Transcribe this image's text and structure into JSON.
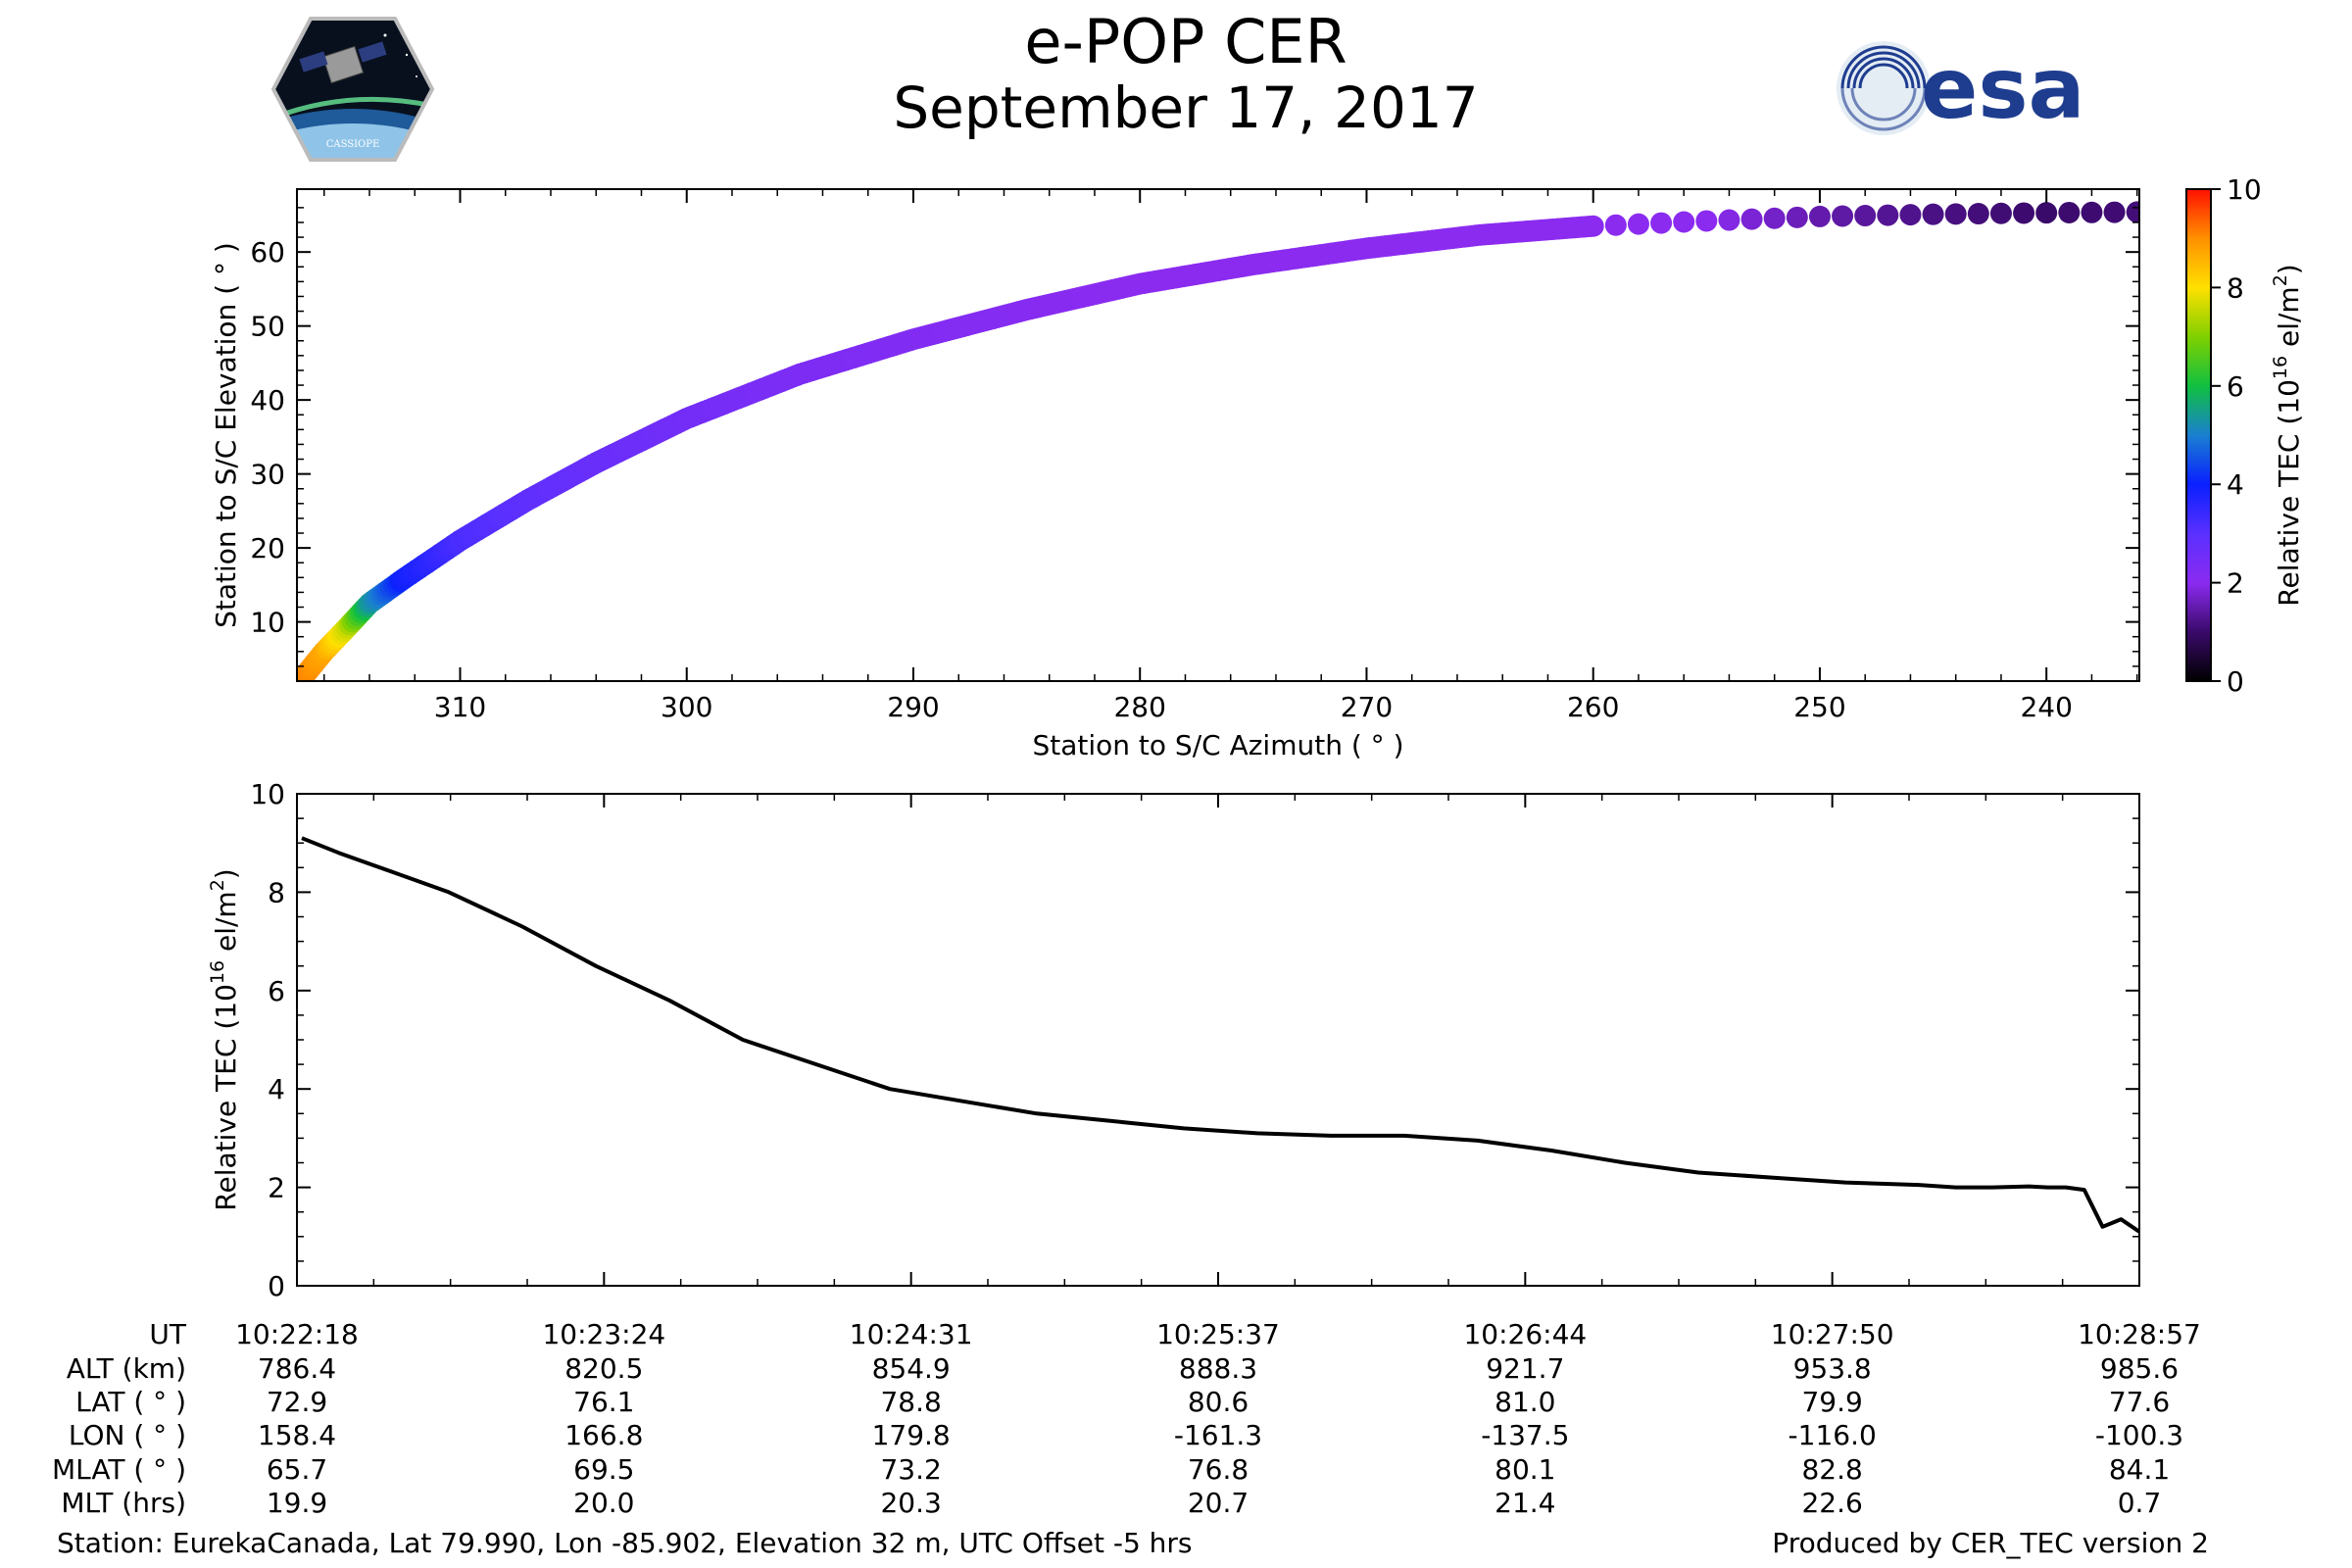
{
  "title": "e-POP CER",
  "subtitle": "September 17, 2017",
  "logos": {
    "left_text": "CASSIOPE",
    "right_text": "esa"
  },
  "chart_data": [
    {
      "type": "scatter",
      "name": "elevation-vs-azimuth",
      "xlabel": "Station to S/C Azimuth ( ° )",
      "ylabel": "Station to S/C Elevation ( ° )",
      "xlim": [
        317.2,
        235.9
      ],
      "ylim": [
        2.0,
        68.5
      ],
      "xticks": [
        310,
        300,
        290,
        280,
        270,
        260,
        250,
        240
      ],
      "yticks": [
        10,
        20,
        30,
        40,
        50,
        60
      ],
      "colorbar": {
        "label": "Relative TEC",
        "unit": "10^16 el/m^2",
        "min": 0,
        "max": 10,
        "ticks": [
          0,
          2,
          4,
          6,
          8,
          10
        ],
        "colormap": "gnuplot2-like"
      },
      "points": [
        {
          "az": 316.8,
          "el": 3.0,
          "tec": 9.1
        },
        {
          "az": 316.0,
          "el": 6.0,
          "tec": 8.7
        },
        {
          "az": 315.0,
          "el": 9.2,
          "tec": 7.6
        },
        {
          "az": 314.0,
          "el": 12.5,
          "tec": 5.4
        },
        {
          "az": 312.5,
          "el": 15.8,
          "tec": 3.9
        },
        {
          "az": 310.0,
          "el": 21.0,
          "tec": 3.2
        },
        {
          "az": 307.0,
          "el": 26.5,
          "tec": 2.9
        },
        {
          "az": 304.0,
          "el": 31.5,
          "tec": 2.7
        },
        {
          "az": 300.0,
          "el": 37.5,
          "tec": 2.5
        },
        {
          "az": 295.0,
          "el": 43.5,
          "tec": 2.3
        },
        {
          "az": 290.0,
          "el": 48.2,
          "tec": 2.2
        },
        {
          "az": 285.0,
          "el": 52.2,
          "tec": 2.1
        },
        {
          "az": 280.0,
          "el": 55.7,
          "tec": 2.0
        },
        {
          "az": 275.0,
          "el": 58.3,
          "tec": 2.0
        },
        {
          "az": 270.0,
          "el": 60.5,
          "tec": 2.0
        },
        {
          "az": 265.0,
          "el": 62.3,
          "tec": 2.0
        },
        {
          "az": 260.0,
          "el": 63.5,
          "tec": 2.0
        },
        {
          "az": 255.0,
          "el": 64.2,
          "tec": 2.0
        },
        {
          "az": 250.0,
          "el": 64.8,
          "tec": 1.5
        },
        {
          "az": 245.0,
          "el": 65.1,
          "tec": 1.2
        },
        {
          "az": 240.0,
          "el": 65.3,
          "tec": 1.0
        },
        {
          "az": 236.0,
          "el": 65.4,
          "tec": 1.1
        }
      ]
    },
    {
      "type": "line",
      "name": "relative-tec-vs-time",
      "ylabel": "Relative TEC (10^16 el/m^2)",
      "xlim": [
        0,
        1
      ],
      "ylim": [
        0,
        10
      ],
      "yticks": [
        0,
        2,
        4,
        6,
        8,
        10
      ],
      "series": [
        {
          "name": "Relative TEC",
          "x": [
            0.0,
            0.02,
            0.05,
            0.08,
            0.12,
            0.16,
            0.2,
            0.24,
            0.28,
            0.32,
            0.36,
            0.4,
            0.44,
            0.48,
            0.52,
            0.56,
            0.6,
            0.64,
            0.68,
            0.72,
            0.76,
            0.8,
            0.84,
            0.88,
            0.9,
            0.92,
            0.94,
            0.95,
            0.96,
            0.97,
            0.98,
            0.99,
            1.0
          ],
          "values": [
            9.1,
            8.8,
            8.4,
            8.0,
            7.3,
            6.5,
            5.8,
            5.0,
            4.5,
            4.0,
            3.75,
            3.5,
            3.35,
            3.2,
            3.1,
            3.05,
            3.05,
            2.95,
            2.75,
            2.5,
            2.3,
            2.2,
            2.1,
            2.05,
            2.0,
            2.0,
            2.02,
            2.0,
            2.0,
            1.95,
            1.2,
            1.35,
            1.1
          ]
        }
      ]
    }
  ],
  "table": {
    "row_labels": [
      "UT",
      "ALT (km)",
      "LAT ( ° )",
      "LON ( ° )",
      "MLAT ( ° )",
      "MLT (hrs)"
    ],
    "columns": [
      {
        "UT": "10:22:18",
        "ALT": "786.4",
        "LAT": "72.9",
        "LON": "158.4",
        "MLAT": "65.7",
        "MLT": "19.9"
      },
      {
        "UT": "10:23:24",
        "ALT": "820.5",
        "LAT": "76.1",
        "LON": "166.8",
        "MLAT": "69.5",
        "MLT": "20.0"
      },
      {
        "UT": "10:24:31",
        "ALT": "854.9",
        "LAT": "78.8",
        "LON": "179.8",
        "MLAT": "73.2",
        "MLT": "20.3"
      },
      {
        "UT": "10:25:37",
        "ALT": "888.3",
        "LAT": "80.6",
        "LON": "-161.3",
        "MLAT": "76.8",
        "MLT": "20.7"
      },
      {
        "UT": "10:26:44",
        "ALT": "921.7",
        "LAT": "81.0",
        "LON": "-137.5",
        "MLAT": "80.1",
        "MLT": "21.4"
      },
      {
        "UT": "10:27:50",
        "ALT": "953.8",
        "LAT": "79.9",
        "LON": "-116.0",
        "MLAT": "82.8",
        "MLT": "22.6"
      },
      {
        "UT": "10:28:57",
        "ALT": "985.6",
        "LAT": "77.6",
        "LON": "-100.3",
        "MLAT": "84.1",
        "MLT": "0.7"
      }
    ]
  },
  "footer": {
    "station": "Station: EurekaCanada, Lat 79.990, Lon -85.902, Elevation 32 m, UTC Offset -5 hrs",
    "produced": "Produced by CER_TEC version 2"
  }
}
